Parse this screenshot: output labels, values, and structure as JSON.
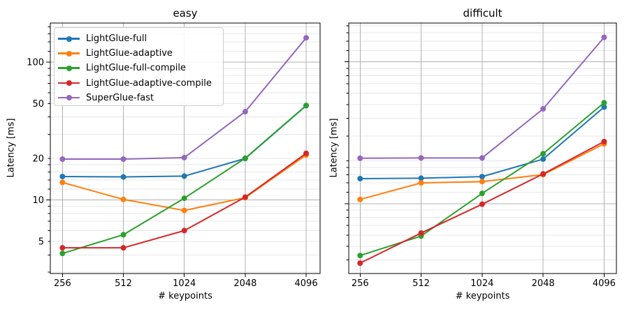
{
  "figure": {
    "background": "#ffffff",
    "text_color": "#000000",
    "grid_major_color": "#b0b0b0",
    "grid_minor_color": "#e7e7e7"
  },
  "legend": {
    "location": "upper-left",
    "entries": [
      {
        "label": "LightGlue-full",
        "color": "#1f77b4",
        "marker": "circle-icon"
      },
      {
        "label": "LightGlue-adaptive",
        "color": "#ff7f0e",
        "marker": "circle-icon"
      },
      {
        "label": "LightGlue-full-compile",
        "color": "#2ca02c",
        "marker": "circle-icon"
      },
      {
        "label": "LightGlue-adaptive-compile",
        "color": "#d62728",
        "marker": "circle-icon"
      },
      {
        "label": "SuperGlue-fast",
        "color": "#9467bd",
        "marker": "circle-icon"
      }
    ]
  },
  "chart_data": [
    {
      "type": "line",
      "title": "easy",
      "xlabel": "# keypoints",
      "ylabel": "Latency [ms]",
      "xscale": "log2",
      "yscale": "log10",
      "x": [
        256,
        512,
        1024,
        2048,
        4096
      ],
      "x_tick_labels": [
        "256",
        "512",
        "1024",
        "2048",
        "4096"
      ],
      "y_labeled_ticks": [
        5,
        10,
        20,
        50,
        100
      ],
      "y_tick_labels": [
        "5",
        "10",
        "20",
        "50",
        "100"
      ],
      "y_tick_labels_visible": true,
      "y_major_ticks": [
        10,
        100
      ],
      "xlim": [
        223,
        4800
      ],
      "ylim": [
        2.93,
        192
      ],
      "grid": {
        "major": true,
        "minor": true
      },
      "series": [
        {
          "name": "LightGlue-full",
          "color": "#1f77b4",
          "values": [
            14.8,
            14.7,
            14.9,
            20.0,
            48.3
          ]
        },
        {
          "name": "LightGlue-adaptive",
          "color": "#ff7f0e",
          "values": [
            13.4,
            10.1,
            8.4,
            10.4,
            21.2
          ]
        },
        {
          "name": "LightGlue-full-compile",
          "color": "#2ca02c",
          "values": [
            4.1,
            5.6,
            10.3,
            20.1,
            48.5
          ]
        },
        {
          "name": "LightGlue-adaptive-compile",
          "color": "#d62728",
          "values": [
            4.5,
            4.5,
            6.0,
            10.5,
            21.8
          ]
        },
        {
          "name": "SuperGlue-fast",
          "color": "#9467bd",
          "values": [
            19.8,
            19.8,
            20.3,
            43.7,
            150.0
          ]
        }
      ]
    },
    {
      "type": "line",
      "title": "difficult",
      "xlabel": "# keypoints",
      "ylabel": "Latency [ms]",
      "xscale": "log2",
      "yscale": "log10",
      "x": [
        256,
        512,
        1024,
        2048,
        4096
      ],
      "x_tick_labels": [
        "256",
        "512",
        "1024",
        "2048",
        "4096"
      ],
      "y_labeled_ticks": [
        5,
        10,
        20,
        50,
        100
      ],
      "y_tick_labels": [
        "5",
        "10",
        "20",
        "50",
        "100"
      ],
      "y_tick_labels_visible": false,
      "y_major_ticks": [
        10,
        100
      ],
      "xlim": [
        225,
        4710
      ],
      "ylim": [
        3.21,
        188
      ],
      "grid": {
        "major": true,
        "minor": true
      },
      "series": [
        {
          "name": "LightGlue-full",
          "color": "#1f77b4",
          "values": [
            15.0,
            15.1,
            15.5,
            20.6,
            48.0
          ]
        },
        {
          "name": "LightGlue-adaptive",
          "color": "#ff7f0e",
          "values": [
            10.7,
            14.0,
            14.3,
            16.0,
            26.4
          ]
        },
        {
          "name": "LightGlue-full-compile",
          "color": "#2ca02c",
          "values": [
            4.3,
            5.9,
            11.8,
            22.5,
            51.5
          ]
        },
        {
          "name": "LightGlue-adaptive-compile",
          "color": "#d62728",
          "values": [
            3.8,
            6.2,
            9.9,
            16.2,
            27.4
          ]
        },
        {
          "name": "SuperGlue-fast",
          "color": "#9467bd",
          "values": [
            20.9,
            21.0,
            21.0,
            46.6,
            149.0
          ]
        }
      ]
    }
  ]
}
